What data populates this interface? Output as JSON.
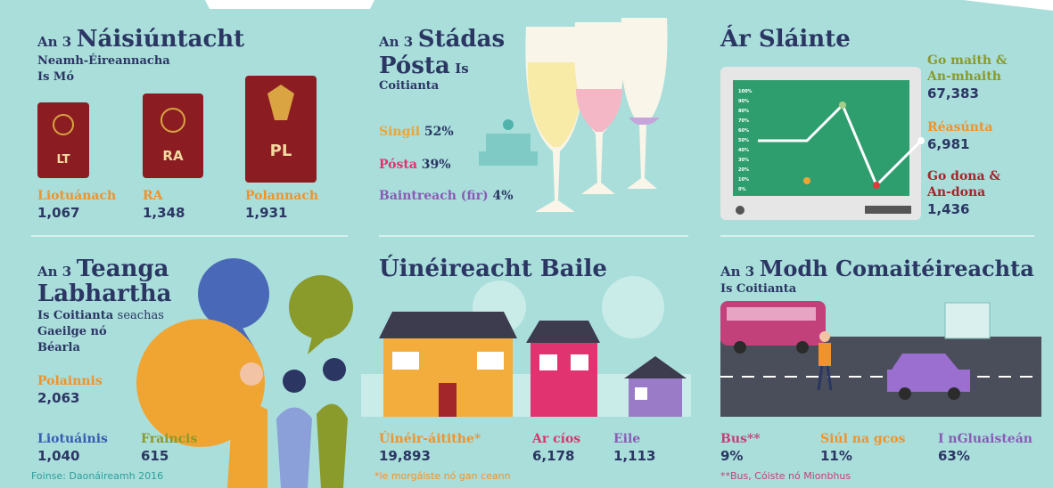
{
  "source": "Foinse: Daonáireamh 2016",
  "nationality": {
    "prefix": "An 3",
    "title": "Náisiúntacht",
    "subtitle": [
      "Neamh-Éireannacha",
      "Is Mó"
    ],
    "items": [
      {
        "code": "LT",
        "label": "Liotuánach",
        "value": "1,067"
      },
      {
        "code": "RA",
        "label": "RA",
        "value": "1,348"
      },
      {
        "code": "PL",
        "label": "Polannach",
        "value": "1,931"
      }
    ]
  },
  "marital": {
    "prefix": "An 3",
    "title": [
      "Stádas",
      "Pósta"
    ],
    "suffix": "Is",
    "subtitle": "Coitianta",
    "items": [
      {
        "label": "Singil",
        "value": "52%"
      },
      {
        "label": "Pósta",
        "value": "39%"
      },
      {
        "label": "Baintreach (fir)",
        "value": "4%"
      }
    ]
  },
  "health": {
    "title": "Ár Sláinte",
    "monitor_ticks": [
      "100%",
      "90%",
      "80%",
      "70%",
      "60%",
      "50%",
      "40%",
      "30%",
      "20%",
      "10%",
      "0%"
    ],
    "items": [
      {
        "label": [
          "Go maith &",
          "An-mhaith"
        ],
        "value": "67,383"
      },
      {
        "label": [
          "Réasúnta"
        ],
        "value": "6,981"
      },
      {
        "label": [
          "Go dona &",
          "An-dona"
        ],
        "value": "1,436"
      }
    ]
  },
  "language": {
    "prefix": "An 3",
    "title": [
      "Teanga",
      "Labhartha"
    ],
    "subtitle": "Is Coitianta",
    "connector": "seachas",
    "subtitle_more": [
      "Gaeilge nó",
      "Béarla"
    ],
    "items": [
      {
        "label": "Polainnis",
        "value": "2,063"
      },
      {
        "label": "Liotuáinis",
        "value": "1,040"
      },
      {
        "label": "Fraincis",
        "value": "615"
      }
    ]
  },
  "home": {
    "title": "Úinéireacht Baile",
    "items": [
      {
        "label": "Úinéir-áitithe*",
        "value": "19,893"
      },
      {
        "label": "Ar cíos",
        "value": "6,178"
      },
      {
        "label": "Eile",
        "value": "1,113"
      }
    ],
    "note": "*le morgáiste nó gan ceann"
  },
  "commute": {
    "prefix": "An 3",
    "title": "Modh Comaitéireachta",
    "subtitle": "Is Coitianta",
    "items": [
      {
        "label": "Bus**",
        "value": "9%"
      },
      {
        "label": "Siúl na gcos",
        "value": "11%"
      },
      {
        "label": "I nGluaisteán",
        "value": "63%"
      }
    ],
    "note": "**Bus, Cóiste nó Mionbhus"
  }
}
